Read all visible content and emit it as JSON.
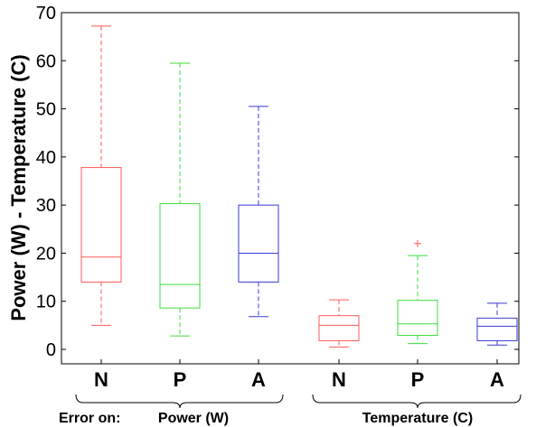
{
  "chart_data": {
    "type": "boxplot",
    "ylabel": "Power (W) - Temperature (C)",
    "ylim": [
      -3,
      70
    ],
    "yticks": [
      0,
      10,
      20,
      30,
      40,
      50,
      60,
      70
    ],
    "grid": false,
    "categories": [
      "N",
      "P",
      "A",
      "N",
      "P",
      "A"
    ],
    "boxes": [
      {
        "label": "N",
        "group": "Power (W)",
        "color": "#ff5a5a",
        "whisker_low": 5.0,
        "q1": 14.0,
        "median": 19.2,
        "q3": 37.8,
        "whisker_high": 67.2,
        "outliers": []
      },
      {
        "label": "P",
        "group": "Power (W)",
        "color": "#3ddc3d",
        "whisker_low": 2.8,
        "q1": 8.6,
        "median": 13.5,
        "q3": 30.3,
        "whisker_high": 59.5,
        "outliers": []
      },
      {
        "label": "A",
        "group": "Power (W)",
        "color": "#3a3ad8",
        "whisker_low": 6.8,
        "q1": 14.0,
        "median": 20.0,
        "q3": 30.0,
        "whisker_high": 50.5,
        "outliers": []
      },
      {
        "label": "N",
        "group": "Temperature (C)",
        "color": "#ff5a5a",
        "whisker_low": 0.5,
        "q1": 1.8,
        "median": 5.0,
        "q3": 7.0,
        "whisker_high": 10.3,
        "outliers": []
      },
      {
        "label": "P",
        "group": "Temperature (C)",
        "color": "#3ddc3d",
        "whisker_low": 1.2,
        "q1": 2.9,
        "median": 5.3,
        "q3": 10.2,
        "whisker_high": 19.5,
        "outliers": [
          22.0
        ]
      },
      {
        "label": "A",
        "group": "Temperature (C)",
        "color": "#3a3ad8",
        "whisker_low": 0.9,
        "q1": 1.8,
        "median": 4.8,
        "q3": 6.5,
        "whisker_high": 9.6,
        "outliers": []
      }
    ],
    "outlier_color": "#ff5a5a",
    "annotations": {
      "prefix": "Error on:",
      "groups": [
        "Power (W)",
        "Temperature (C)"
      ]
    }
  }
}
